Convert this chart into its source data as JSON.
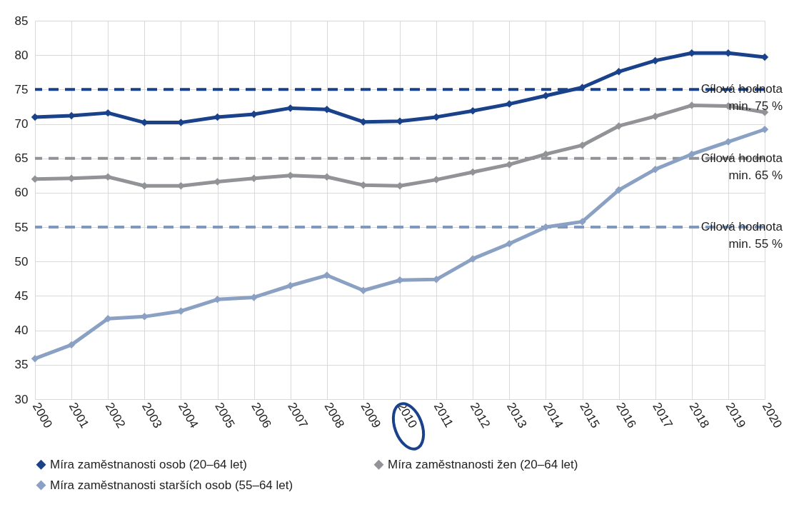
{
  "chart_data": {
    "type": "line",
    "categories": [
      "2000",
      "2001",
      "2002",
      "2003",
      "2004",
      "2005",
      "2006",
      "2007",
      "2008",
      "2009",
      "2010",
      "2011",
      "2012",
      "2013",
      "2014",
      "2015",
      "2016",
      "2017",
      "2018",
      "2019",
      "2020"
    ],
    "series": [
      {
        "name": "Míra zaměstnanosti osob (20–64 let)",
        "color": "#1a428a",
        "values": [
          71.0,
          71.2,
          71.6,
          70.2,
          70.2,
          71.0,
          71.4,
          72.3,
          72.1,
          70.3,
          70.4,
          71.0,
          71.9,
          72.9,
          74.1,
          75.3,
          77.6,
          79.2,
          80.3,
          80.3,
          79.7
        ]
      },
      {
        "name": "Míra zaměstnanosti žen (20–64 let)",
        "color": "#929396",
        "values": [
          62.0,
          62.1,
          62.3,
          61.0,
          61.0,
          61.6,
          62.1,
          62.5,
          62.3,
          61.1,
          61.0,
          61.9,
          63.0,
          64.1,
          65.6,
          66.9,
          69.7,
          71.1,
          72.7,
          72.6,
          71.7
        ]
      },
      {
        "name": "Míra zaměstnanosti starších osob (55–64 let)",
        "color": "#8aa1c4",
        "values": [
          35.9,
          37.9,
          41.7,
          42.0,
          42.8,
          44.5,
          44.8,
          46.5,
          48.0,
          45.8,
          47.3,
          47.4,
          50.4,
          52.6,
          55.0,
          55.8,
          60.4,
          63.4,
          65.6,
          67.4,
          69.2
        ]
      }
    ],
    "ylim": [
      30,
      85
    ],
    "yticks": [
      30,
      35,
      40,
      45,
      50,
      55,
      60,
      65,
      70,
      75,
      80,
      85
    ],
    "ref_lines": [
      {
        "axis": "y",
        "value": 75,
        "label": "Cílová hodnota\nmin. 75 %",
        "color": "#1a428a",
        "line_style": "dashed"
      },
      {
        "axis": "y",
        "value": 65,
        "label": "Cílová hodnota\nmin. 65 %",
        "color": "#929396",
        "line_style": "dashed"
      },
      {
        "axis": "y",
        "value": 55,
        "label": "Cílová hodnota\nmin. 55 %",
        "color": "#7f98bf",
        "line_style": "dashed"
      }
    ],
    "grid": true,
    "legend": "bottom",
    "marker": "diamond",
    "line_style": "solid"
  }
}
